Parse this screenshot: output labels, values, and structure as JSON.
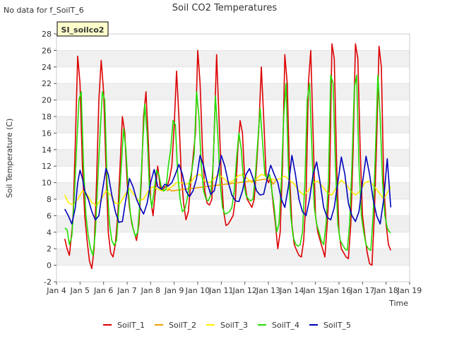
{
  "chart_data": {
    "type": "line",
    "title": "Soil CO2 Temperatures",
    "note": "No data for f_SoilT_6",
    "site_label": "SI_soilco2",
    "xlabel": "Time",
    "ylabel": "Soil Temperature (C)",
    "ylim": [
      -2,
      28
    ],
    "yticks": [
      -2,
      0,
      2,
      4,
      6,
      8,
      10,
      12,
      14,
      16,
      18,
      20,
      22,
      24,
      26,
      28
    ],
    "xlim": [
      4,
      19
    ],
    "xticks": [
      {
        "value": 4,
        "label": "Jan 4"
      },
      {
        "value": 5,
        "label": "Jan 5"
      },
      {
        "value": 6,
        "label": "Jan 6"
      },
      {
        "value": 7,
        "label": "Jan 7"
      },
      {
        "value": 8,
        "label": "Jan 8"
      },
      {
        "value": 9,
        "label": "Jan 9"
      },
      {
        "value": 10,
        "label": "Jan 10"
      },
      {
        "value": 11,
        "label": "Jan 11"
      },
      {
        "value": 12,
        "label": "Jan 12"
      },
      {
        "value": 13,
        "label": "Jan 13"
      },
      {
        "value": 14,
        "label": "Jan 14"
      },
      {
        "value": 15,
        "label": "Jan 15"
      },
      {
        "value": 16,
        "label": "Jan 16"
      },
      {
        "value": 17,
        "label": "Jan 17"
      },
      {
        "value": 18,
        "label": "Jan 18"
      },
      {
        "value": 19,
        "label": "Jan 19"
      }
    ],
    "grid": "horizontal bands",
    "legend_position": "bottom",
    "series": [
      {
        "name": "SoilT_1",
        "color": "#dd0000",
        "x": [
          4.35,
          4.45,
          4.55,
          4.7,
          4.8,
          4.9,
          5.0,
          5.1,
          5.2,
          5.3,
          5.4,
          5.5,
          5.6,
          5.7,
          5.8,
          5.9,
          6.0,
          6.1,
          6.2,
          6.3,
          6.4,
          6.5,
          6.6,
          6.7,
          6.8,
          6.9,
          7.0,
          7.1,
          7.2,
          7.3,
          7.4,
          7.5,
          7.6,
          7.7,
          7.8,
          7.9,
          8.0,
          8.1,
          8.2,
          8.3,
          8.4,
          8.5,
          8.6,
          8.7,
          8.8,
          8.9,
          9.0,
          9.1,
          9.2,
          9.3,
          9.4,
          9.5,
          9.6,
          9.7,
          9.8,
          9.9,
          10.0,
          10.1,
          10.2,
          10.3,
          10.4,
          10.5,
          10.6,
          10.7,
          10.8,
          10.9,
          11.0,
          11.1,
          11.2,
          11.3,
          11.4,
          11.5,
          11.6,
          11.7,
          11.8,
          11.9,
          12.0,
          12.1,
          12.2,
          12.3,
          12.4,
          12.5,
          12.6,
          12.7,
          12.8,
          12.9,
          13.0,
          13.1,
          13.2,
          13.3,
          13.4,
          13.5,
          13.6,
          13.7,
          13.8,
          13.9,
          14.0,
          14.1,
          14.2,
          14.3,
          14.4,
          14.5,
          14.6,
          14.7,
          14.8,
          14.9,
          15.0,
          15.1,
          15.2,
          15.3,
          15.4,
          15.5,
          15.6,
          15.7,
          15.8,
          15.9,
          16.0,
          16.1,
          16.2,
          16.3,
          16.4,
          16.5,
          16.6,
          16.7,
          16.8,
          16.9,
          17.0,
          17.1,
          17.2,
          17.3,
          17.4,
          17.5,
          17.6,
          17.7,
          17.8,
          17.9,
          18.0,
          18.1,
          18.2
        ],
        "y": [
          3.2,
          2.0,
          1.2,
          5.5,
          15.0,
          25.3,
          22.0,
          12.0,
          6.0,
          3.0,
          0.5,
          -0.4,
          2.0,
          10.0,
          20.0,
          24.8,
          21.0,
          12.0,
          4.0,
          1.5,
          1.0,
          2.5,
          6.0,
          12.0,
          18.0,
          16.0,
          10.0,
          7.0,
          5.0,
          4.0,
          3.0,
          5.0,
          10.0,
          18.0,
          21.0,
          15.0,
          8.0,
          6.0,
          9.0,
          12.0,
          9.5,
          9.0,
          9.5,
          9.5,
          10.5,
          12.0,
          17.0,
          23.5,
          18.0,
          11.0,
          7.5,
          5.5,
          6.5,
          10.0,
          13.0,
          16.0,
          26.0,
          22.0,
          14.0,
          9.0,
          7.5,
          7.3,
          8.0,
          16.0,
          25.5,
          18.0,
          11.0,
          6.5,
          4.8,
          5.0,
          5.5,
          6.0,
          8.0,
          14.0,
          17.5,
          16.0,
          10.0,
          8.0,
          7.5,
          7.0,
          8.0,
          12.0,
          17.0,
          24.0,
          18.0,
          11.0,
          10.0,
          10.5,
          7.5,
          5.0,
          2.0,
          4.0,
          12.0,
          25.5,
          22.0,
          11.0,
          5.0,
          2.5,
          1.8,
          1.2,
          1.0,
          3.0,
          8.0,
          22.0,
          26.0,
          16.0,
          6.0,
          4.0,
          3.0,
          2.0,
          1.0,
          5.0,
          10.0,
          26.8,
          25.0,
          12.0,
          4.0,
          2.0,
          1.5,
          1.0,
          0.8,
          5.0,
          14.0,
          26.8,
          25.0,
          14.0,
          6.0,
          3.5,
          1.5,
          0.2,
          0.0,
          6.0,
          15.0,
          26.5,
          24.0,
          10.0,
          5.0,
          2.5,
          1.8
        ]
      },
      {
        "name": "SoilT_2",
        "color": "#f0a000",
        "x": [
          8.7,
          8.8,
          8.9,
          13.1,
          13.2,
          13.3
        ],
        "y": [
          9.0,
          9.2,
          9.0,
          10.5,
          9.8,
          10.2
        ]
      },
      {
        "name": "SoilT_3",
        "color": "#ffee00",
        "x": [
          4.35,
          4.5,
          4.7,
          4.9,
          5.1,
          5.3,
          5.5,
          5.7,
          5.9,
          6.1,
          6.3,
          6.5,
          6.7,
          6.9,
          7.1,
          7.3,
          7.5,
          7.7,
          7.9,
          8.1,
          8.3,
          8.5,
          8.7,
          8.9,
          9.1,
          9.3,
          9.5,
          9.7,
          9.9,
          10.1,
          10.3,
          10.5,
          10.7,
          10.9,
          11.1,
          11.3,
          11.5,
          11.7,
          11.9,
          12.1,
          12.3,
          12.5,
          12.7,
          12.9,
          13.1,
          13.3,
          13.5,
          13.7,
          13.9,
          14.1,
          14.3,
          14.5,
          14.7,
          14.9,
          15.1,
          15.3,
          15.5,
          15.7,
          15.9,
          16.1,
          16.3,
          16.5,
          16.7,
          16.9,
          17.1,
          17.3,
          17.5,
          17.7,
          17.9,
          18.1,
          18.2
        ],
        "y": [
          8.5,
          7.6,
          7.3,
          8.0,
          9.0,
          8.6,
          7.6,
          7.2,
          8.0,
          9.0,
          8.5,
          7.5,
          7.5,
          8.5,
          9.3,
          8.5,
          7.8,
          8.0,
          9.0,
          9.5,
          9.2,
          9.0,
          9.2,
          9.5,
          10.0,
          10.0,
          9.8,
          10.0,
          10.8,
          11.0,
          10.2,
          10.0,
          10.5,
          11.0,
          10.5,
          10.0,
          10.2,
          10.8,
          11.0,
          10.5,
          10.0,
          10.5,
          11.0,
          10.8,
          10.5,
          10.3,
          10.5,
          10.8,
          10.3,
          9.8,
          9.0,
          8.5,
          9.0,
          10.0,
          10.2,
          9.5,
          8.8,
          8.5,
          9.5,
          10.3,
          9.8,
          9.0,
          8.5,
          9.0,
          10.0,
          10.2,
          9.5,
          8.8,
          8.0,
          9.0,
          9.5
        ]
      },
      {
        "name": "SoilT_4",
        "color": "#22dd00",
        "x": [
          4.35,
          4.45,
          4.55,
          4.65,
          4.75,
          4.85,
          4.95,
          5.05,
          5.15,
          5.25,
          5.35,
          5.45,
          5.55,
          5.65,
          5.75,
          5.85,
          5.95,
          6.05,
          6.15,
          6.25,
          6.35,
          6.45,
          6.55,
          6.65,
          6.75,
          6.85,
          6.95,
          7.05,
          7.15,
          7.25,
          7.35,
          7.45,
          7.55,
          7.65,
          7.75,
          7.85,
          7.95,
          8.05,
          8.15,
          8.25,
          8.35,
          8.45,
          8.55,
          8.65,
          8.75,
          8.85,
          8.95,
          9.05,
          9.15,
          9.25,
          9.35,
          9.45,
          9.55,
          9.65,
          9.75,
          9.85,
          9.95,
          10.05,
          10.15,
          10.25,
          10.35,
          10.45,
          10.55,
          10.65,
          10.75,
          10.85,
          10.95,
          11.05,
          11.15,
          11.25,
          11.35,
          11.45,
          11.55,
          11.65,
          11.75,
          11.85,
          11.95,
          12.05,
          12.15,
          12.25,
          12.35,
          12.45,
          12.55,
          12.65,
          12.75,
          12.85,
          12.95,
          13.05,
          13.15,
          13.25,
          13.35,
          13.45,
          13.55,
          13.65,
          13.75,
          13.85,
          13.95,
          14.05,
          14.15,
          14.25,
          14.35,
          14.45,
          14.55,
          14.65,
          14.75,
          14.85,
          14.95,
          15.05,
          15.15,
          15.25,
          15.35,
          15.45,
          15.55,
          15.65,
          15.75,
          15.85,
          15.95,
          16.05,
          16.15,
          16.25,
          16.35,
          16.45,
          16.55,
          16.65,
          16.75,
          16.85,
          16.95,
          17.05,
          17.15,
          17.25,
          17.35,
          17.45,
          17.55,
          17.65,
          17.75,
          17.85,
          17.95,
          18.05,
          18.15,
          18.2
        ],
        "y": [
          4.5,
          4.3,
          2.5,
          3.5,
          8.0,
          14.0,
          20.0,
          21.0,
          12.0,
          6.0,
          3.5,
          2.0,
          1.2,
          4.0,
          10.0,
          16.0,
          21.0,
          20.0,
          10.0,
          5.0,
          3.0,
          2.4,
          3.0,
          7.0,
          12.0,
          16.5,
          14.0,
          9.0,
          6.0,
          4.5,
          3.5,
          4.0,
          8.0,
          14.0,
          19.5,
          16.0,
          9.0,
          7.0,
          9.0,
          11.5,
          11.0,
          9.5,
          9.0,
          9.2,
          12.0,
          14.0,
          17.5,
          17.0,
          11.0,
          8.0,
          6.5,
          6.8,
          8.0,
          10.0,
          11.5,
          13.5,
          21.0,
          18.0,
          12.0,
          9.0,
          8.0,
          7.8,
          8.5,
          12.0,
          20.5,
          16.0,
          10.0,
          7.0,
          6.2,
          6.3,
          6.5,
          7.0,
          9.0,
          13.0,
          16.0,
          14.0,
          10.0,
          8.5,
          8.0,
          7.8,
          8.0,
          11.0,
          15.0,
          19.0,
          15.0,
          11.0,
          10.5,
          11.0,
          9.0,
          7.0,
          4.0,
          5.0,
          10.0,
          18.0,
          22.0,
          12.0,
          6.0,
          3.5,
          2.6,
          2.3,
          2.5,
          4.0,
          10.0,
          20.0,
          22.0,
          14.0,
          7.0,
          5.0,
          4.0,
          3.0,
          2.5,
          5.0,
          10.0,
          23.0,
          22.0,
          12.0,
          5.0,
          3.0,
          2.5,
          2.0,
          1.8,
          5.0,
          12.0,
          21.5,
          23.0,
          12.0,
          6.0,
          4.0,
          2.5,
          2.0,
          1.8,
          6.0,
          14.0,
          23.0,
          18.0,
          10.0,
          6.0,
          4.5,
          4.0,
          4.0
        ]
      },
      {
        "name": "SoilT_5",
        "color": "#0000bb",
        "x": [
          4.35,
          4.5,
          4.65,
          4.8,
          4.9,
          5.0,
          5.1,
          5.2,
          5.35,
          5.5,
          5.65,
          5.8,
          5.95,
          6.1,
          6.2,
          6.35,
          6.5,
          6.65,
          6.8,
          6.95,
          7.1,
          7.25,
          7.4,
          7.55,
          7.7,
          7.85,
          8.0,
          8.15,
          8.3,
          8.45,
          8.6,
          8.75,
          8.9,
          9.05,
          9.2,
          9.35,
          9.5,
          9.65,
          9.8,
          9.95,
          10.1,
          10.25,
          10.4,
          10.55,
          10.7,
          10.85,
          11.0,
          11.15,
          11.3,
          11.45,
          11.6,
          11.75,
          11.9,
          12.05,
          12.2,
          12.35,
          12.5,
          12.65,
          12.8,
          12.95,
          13.1,
          13.25,
          13.4,
          13.55,
          13.7,
          13.85,
          14.0,
          14.15,
          14.3,
          14.45,
          14.6,
          14.75,
          14.9,
          15.05,
          15.2,
          15.35,
          15.5,
          15.65,
          15.8,
          15.95,
          16.1,
          16.25,
          16.4,
          16.55,
          16.7,
          16.85,
          17.0,
          17.15,
          17.3,
          17.45,
          17.6,
          17.75,
          17.9,
          18.05,
          18.2
        ],
        "y": [
          6.8,
          6.0,
          5.0,
          7.0,
          10.0,
          11.5,
          10.5,
          9.0,
          8.0,
          6.5,
          5.5,
          6.0,
          9.0,
          11.7,
          11.0,
          8.5,
          6.5,
          5.2,
          5.3,
          8.0,
          10.5,
          9.5,
          8.0,
          7.0,
          6.2,
          7.5,
          10.0,
          11.6,
          9.5,
          9.2,
          9.8,
          9.6,
          10.0,
          11.0,
          12.2,
          11.0,
          9.0,
          8.3,
          9.0,
          10.5,
          13.3,
          12.0,
          10.0,
          8.6,
          9.0,
          11.0,
          13.3,
          12.0,
          10.0,
          8.5,
          7.8,
          7.7,
          9.0,
          11.0,
          11.7,
          10.5,
          9.0,
          8.5,
          8.6,
          10.5,
          12.1,
          11.0,
          10.0,
          8.0,
          7.0,
          9.5,
          13.3,
          11.0,
          8.0,
          6.5,
          6.0,
          8.0,
          11.0,
          12.5,
          10.0,
          7.0,
          5.8,
          5.5,
          7.0,
          10.0,
          13.1,
          11.0,
          7.5,
          6.0,
          5.3,
          6.5,
          10.0,
          13.2,
          11.0,
          8.0,
          6.0,
          5.0,
          8.0,
          12.9,
          7.0
        ]
      }
    ]
  }
}
